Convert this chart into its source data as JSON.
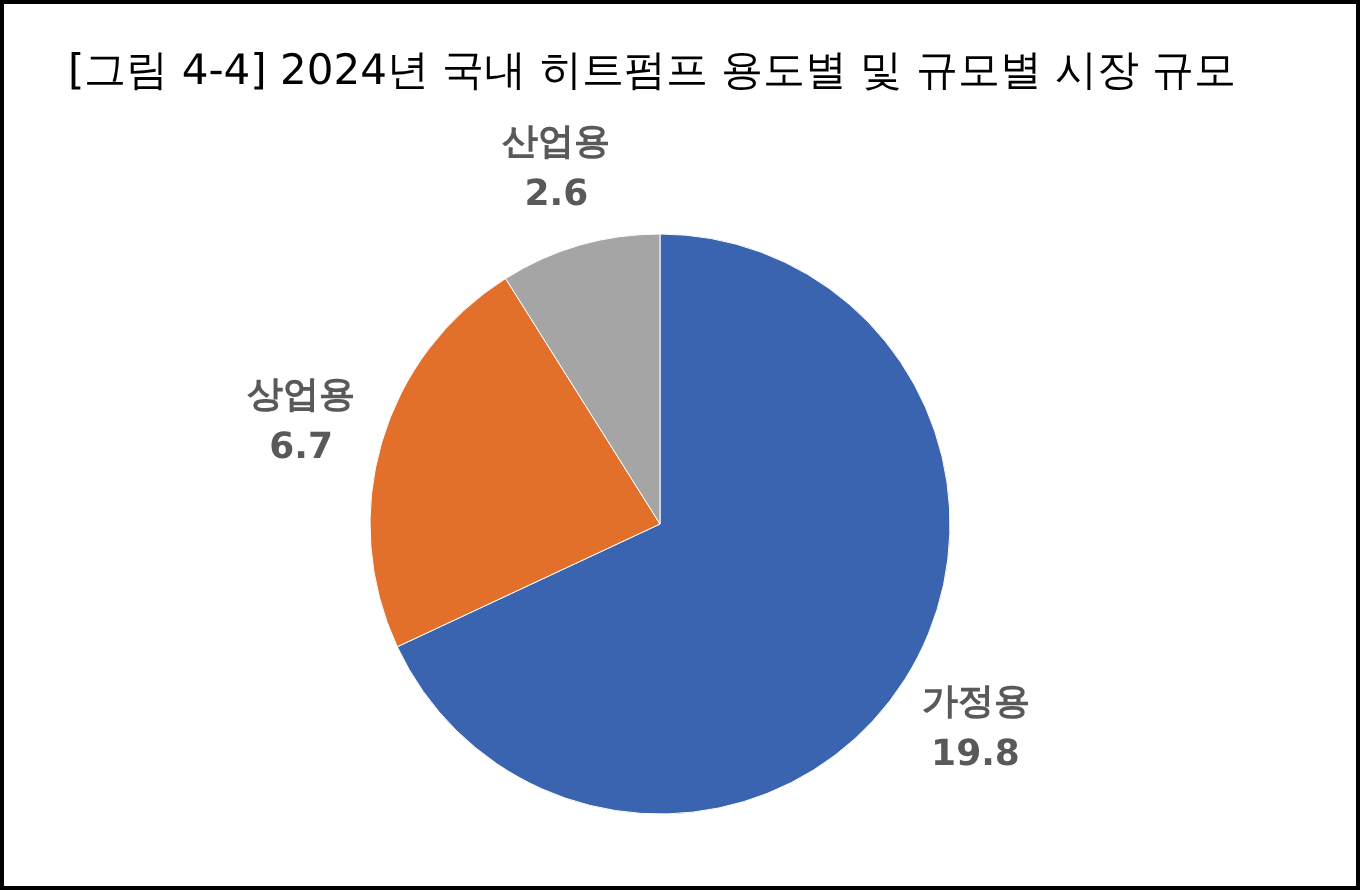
{
  "chart_data": {
    "type": "pie",
    "title": "[그림 4-4] 2024년 국내 히트펌프 용도별 및 규모별 시장 규모",
    "categories": [
      "가정용",
      "상업용",
      "산업용"
    ],
    "values": [
      19.8,
      6.7,
      2.6
    ],
    "colors": [
      "#3a63b0",
      "#e2702a",
      "#a5a5a5"
    ],
    "data_labels": true
  }
}
